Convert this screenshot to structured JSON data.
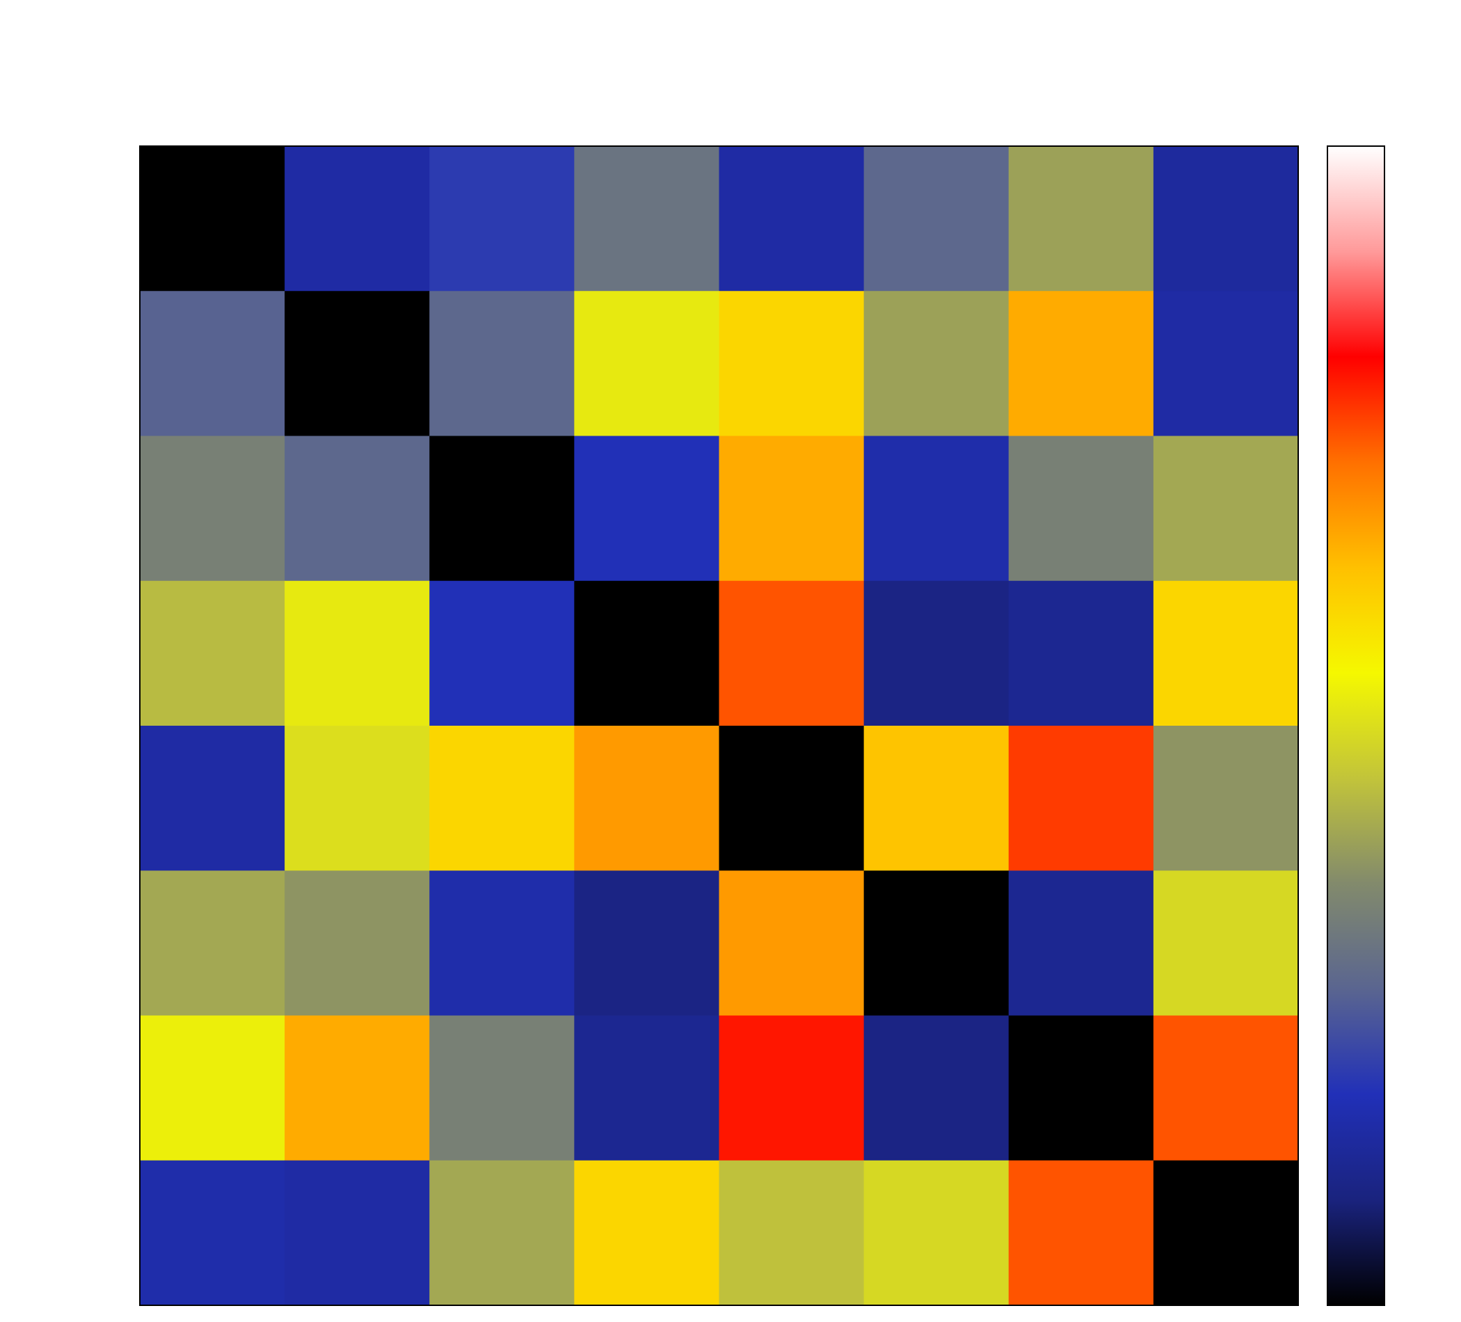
{
  "chart_data": {
    "type": "heatmap",
    "rows": 8,
    "cols": 8,
    "title": "",
    "xlabel": "",
    "ylabel": "",
    "value_range": [
      0,
      1
    ],
    "values": [
      [
        0.0,
        0.15,
        0.2,
        0.31,
        0.15,
        0.28,
        0.4,
        0.14
      ],
      [
        0.27,
        0.0,
        0.28,
        0.52,
        0.6,
        0.4,
        0.66,
        0.15
      ],
      [
        0.34,
        0.28,
        0.0,
        0.18,
        0.66,
        0.16,
        0.34,
        0.41
      ],
      [
        0.44,
        0.52,
        0.18,
        0.0,
        0.75,
        0.1,
        0.12,
        0.6
      ],
      [
        0.15,
        0.5,
        0.6,
        0.68,
        0.0,
        0.63,
        0.77,
        0.38
      ],
      [
        0.41,
        0.38,
        0.16,
        0.1,
        0.68,
        0.0,
        0.12,
        0.49
      ],
      [
        0.53,
        0.66,
        0.34,
        0.12,
        0.8,
        0.1,
        0.0,
        0.75
      ],
      [
        0.16,
        0.15,
        0.41,
        0.6,
        0.45,
        0.49,
        0.75,
        0.0
      ]
    ],
    "colorbar": {
      "orientation": "vertical",
      "position": "right",
      "ticks": [],
      "colors": [
        "#000000",
        "#1a237e",
        "#2130b8",
        "#5a6590",
        "#828a6c",
        "#c2c43a",
        "#f5f800",
        "#ffc000",
        "#ff7000",
        "#ff0000",
        "#ff9a9a",
        "#ffffff"
      ]
    }
  }
}
